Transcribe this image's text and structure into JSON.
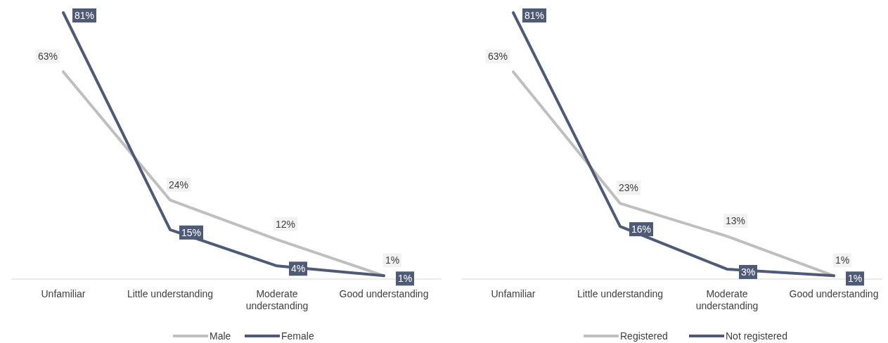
{
  "chart_data": [
    {
      "type": "line",
      "categories": [
        "Unfamiliar",
        "Little understanding",
        "Moderate understanding",
        "Good understanding"
      ],
      "series": [
        {
          "name": "Male",
          "color": "#bfbfbf",
          "values": [
            63,
            24,
            12,
            1
          ],
          "value_labels": [
            "63%",
            "24%",
            "12%",
            "1%"
          ]
        },
        {
          "name": "Female",
          "color": "#4f5b76",
          "values": [
            81,
            15,
            4,
            1
          ],
          "value_labels": [
            "81%",
            "15%",
            "4%",
            "1%"
          ]
        }
      ],
      "legend": "bottom",
      "marker": "none",
      "line_style": "solid"
    },
    {
      "type": "line",
      "categories": [
        "Unfamiliar",
        "Little understanding",
        "Moderate understanding",
        "Good understanding"
      ],
      "series": [
        {
          "name": "Registered",
          "color": "#bfbfbf",
          "values": [
            63,
            23,
            13,
            1
          ],
          "value_labels": [
            "63%",
            "23%",
            "13%",
            "1%"
          ]
        },
        {
          "name": "Not registered",
          "color": "#4f5b76",
          "values": [
            81,
            16,
            3,
            1
          ],
          "value_labels": [
            "81%",
            "16%",
            "3%",
            "1%"
          ]
        }
      ],
      "legend": "bottom",
      "marker": "none",
      "line_style": "solid"
    }
  ]
}
